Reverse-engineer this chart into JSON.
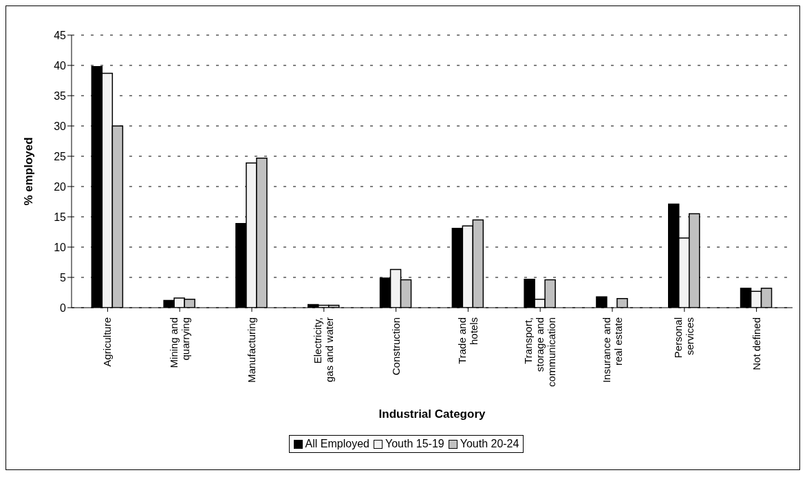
{
  "chart_data": {
    "type": "bar",
    "xlabel": "Industrial Category",
    "ylabel": "% employed",
    "categories": [
      "Agriculture",
      "Mining and quarrying",
      "Manufacturing",
      "Electricity, gas and water",
      "Construction",
      "Trade and hotels",
      "Transport, storage and communication",
      "Insurance and real estate",
      "Personal services",
      "Not defined"
    ],
    "series": [
      {
        "name": "All Employed",
        "color": "#000000",
        "values": [
          39.8,
          1.2,
          13.9,
          0.5,
          4.9,
          13.1,
          4.7,
          1.8,
          17.1,
          3.2
        ]
      },
      {
        "name": "Youth 15-19",
        "color": "#f2f2f2",
        "values": [
          38.7,
          1.6,
          23.9,
          0.4,
          6.3,
          13.5,
          1.4,
          0,
          11.5,
          2.7
        ]
      },
      {
        "name": "Youth 20-24",
        "color": "#c0c0c0",
        "values": [
          30,
          1.4,
          24.7,
          0.4,
          4.6,
          14.5,
          4.6,
          1.5,
          15.5,
          3.2
        ]
      }
    ],
    "ylim": [
      0,
      45
    ],
    "yticks": [
      0,
      5,
      10,
      15,
      20,
      25,
      30,
      35,
      40,
      45
    ],
    "grid": "y",
    "legend": "bottom"
  }
}
